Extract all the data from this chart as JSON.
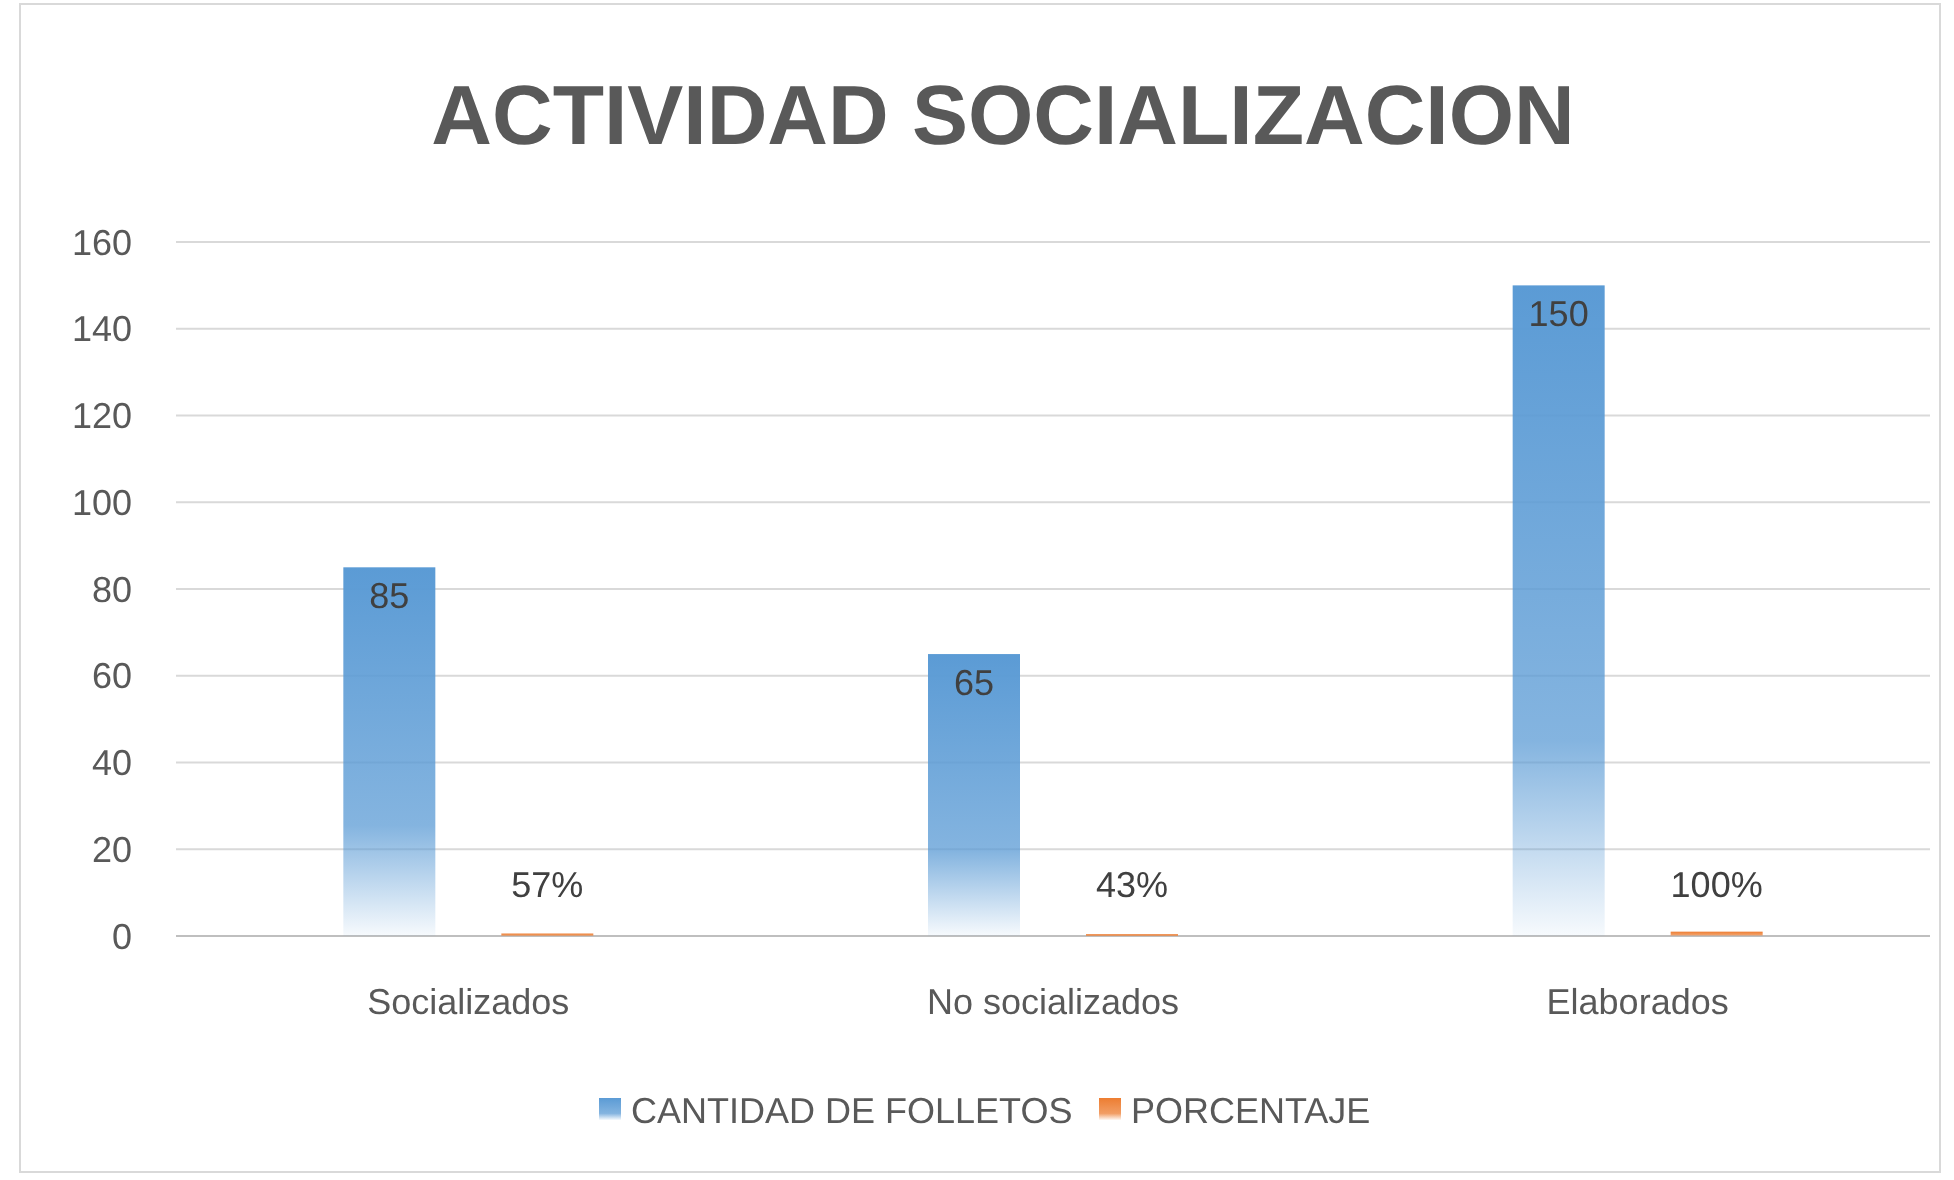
{
  "chart_data": {
    "type": "bar",
    "title": "ACTIVIDAD SOCIALIZACION",
    "categories": [
      "Socializados",
      "No socializados",
      "Elaborados"
    ],
    "series": [
      {
        "name": "CANTIDAD DE FOLLETOS",
        "color": "#5b9bd5",
        "values": [
          85,
          65,
          150
        ],
        "value_labels": [
          "85",
          "65",
          "150"
        ]
      },
      {
        "name": "PORCENTAJE",
        "color": "#ed7d31",
        "values": [
          0.57,
          0.43,
          1
        ],
        "value_labels": [
          "57%",
          "43%",
          "100%"
        ]
      }
    ],
    "ylim": [
      0,
      160
    ],
    "yticks": [
      0,
      20,
      40,
      60,
      80,
      100,
      120,
      140,
      160
    ],
    "grid": "y",
    "legend": "bottom"
  }
}
